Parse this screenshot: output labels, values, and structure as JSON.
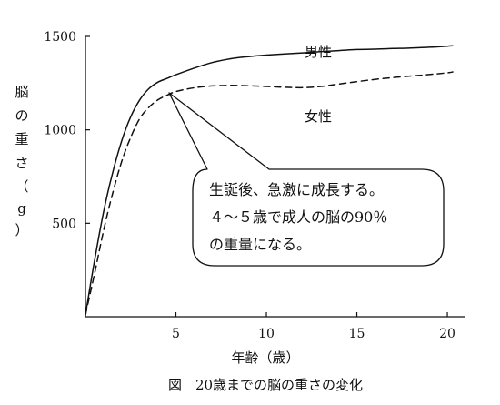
{
  "chart_data": {
    "type": "line",
    "title": "",
    "caption": "図　20歳までの脳の重さの変化",
    "xlabel": "年齢（歳）",
    "ylabel_chars": [
      "脳",
      "の",
      "重",
      "さ",
      "（",
      "g",
      "）"
    ],
    "xlim": [
      0,
      20.5
    ],
    "ylim": [
      0,
      1500
    ],
    "xticks": [
      5,
      10,
      15,
      20
    ],
    "yticks": [
      500,
      1000,
      1500
    ],
    "grid": false,
    "legend": "direct-labels",
    "series": [
      {
        "name": "男性",
        "line_style": "solid",
        "x": [
          0,
          0.5,
          1,
          1.5,
          2,
          2.5,
          3,
          3.5,
          4,
          4.5,
          5,
          6,
          7,
          8,
          9,
          10,
          11,
          12,
          13,
          14,
          15,
          16,
          17,
          18,
          19,
          20,
          20.3
        ],
        "y": [
          10,
          300,
          560,
          770,
          940,
          1070,
          1160,
          1220,
          1255,
          1275,
          1295,
          1330,
          1360,
          1380,
          1392,
          1400,
          1406,
          1412,
          1418,
          1424,
          1430,
          1432,
          1435,
          1438,
          1442,
          1448,
          1450
        ]
      },
      {
        "name": "女性",
        "line_style": "dashed",
        "x": [
          0,
          0.5,
          1,
          1.5,
          2,
          2.5,
          3,
          3.5,
          4,
          4.5,
          5,
          6,
          7,
          8,
          9,
          10,
          11,
          12,
          13,
          14,
          15,
          16,
          17,
          18,
          19,
          20,
          20.3
        ],
        "y": [
          10,
          230,
          460,
          660,
          830,
          960,
          1060,
          1120,
          1160,
          1185,
          1205,
          1225,
          1235,
          1238,
          1236,
          1232,
          1228,
          1226,
          1232,
          1245,
          1258,
          1270,
          1280,
          1288,
          1296,
          1305,
          1310
        ]
      }
    ],
    "annotation": {
      "lines": [
        "生誕後、急激に成長する。",
        "４～５歳で成人の脳の90％",
        "の重量になる。"
      ],
      "points_to": {
        "x": 4.5,
        "y": 1275
      }
    }
  }
}
